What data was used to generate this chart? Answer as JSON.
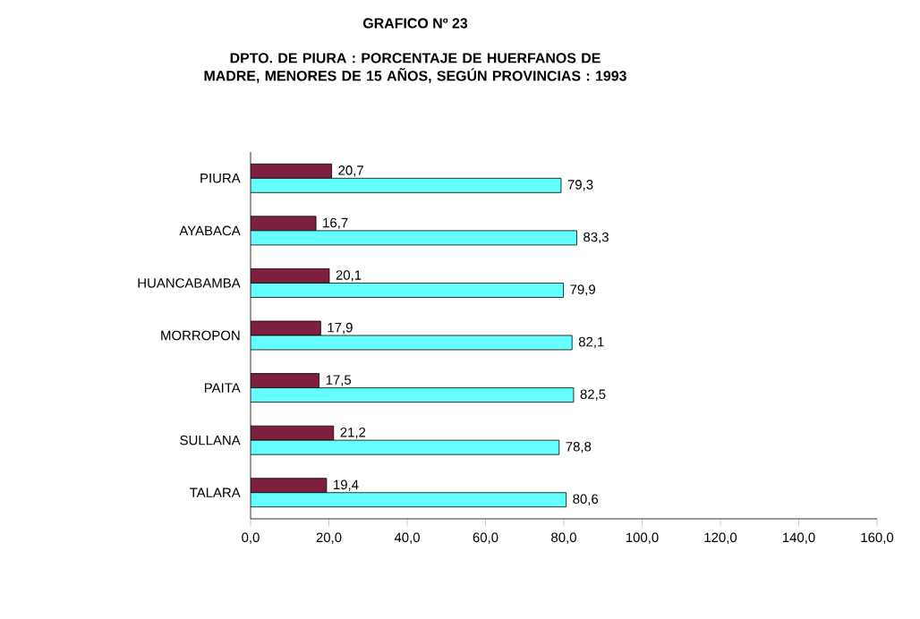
{
  "chart_data": {
    "type": "bar",
    "orientation": "horizontal",
    "title": "GRAFICO Nº 23",
    "subtitle": "DPTO. DE PIURA : PORCENTAJE DE HUERFANOS DE MADRE, MENORES DE 15 AÑOS, SEGÚN PROVINCIAS : 1993",
    "categories": [
      "PIURA",
      "AYABACA",
      "HUANCABAMBA",
      "MORROPON",
      "PAITA",
      "SULLANA",
      "TALARA"
    ],
    "series": [
      {
        "color": "#7f1f3f",
        "values": [
          20.7,
          16.7,
          20.1,
          17.9,
          17.5,
          21.2,
          19.4
        ],
        "value_labels": [
          "20,7",
          "16,7",
          "20,1",
          "17,9",
          "17,5",
          "21,2",
          "19,4"
        ]
      },
      {
        "color": "#66ffff",
        "values": [
          79.3,
          83.3,
          79.9,
          82.1,
          82.5,
          78.8,
          80.6
        ],
        "value_labels": [
          "79,3",
          "83,3",
          "79,9",
          "82,1",
          "82,5",
          "78,8",
          "80,6"
        ]
      }
    ],
    "xlim": [
      0,
      160
    ],
    "xticks": [
      {
        "value": 0,
        "label": "0,0"
      },
      {
        "value": 20,
        "label": "20,0"
      },
      {
        "value": 40,
        "label": "40,0"
      },
      {
        "value": 60,
        "label": "60,0"
      },
      {
        "value": 80,
        "label": "80,0"
      },
      {
        "value": 100,
        "label": "100,0"
      },
      {
        "value": 120,
        "label": "120,0"
      },
      {
        "value": 140,
        "label": "140,0"
      },
      {
        "value": 160,
        "label": "160,0"
      }
    ],
    "grid": false
  }
}
